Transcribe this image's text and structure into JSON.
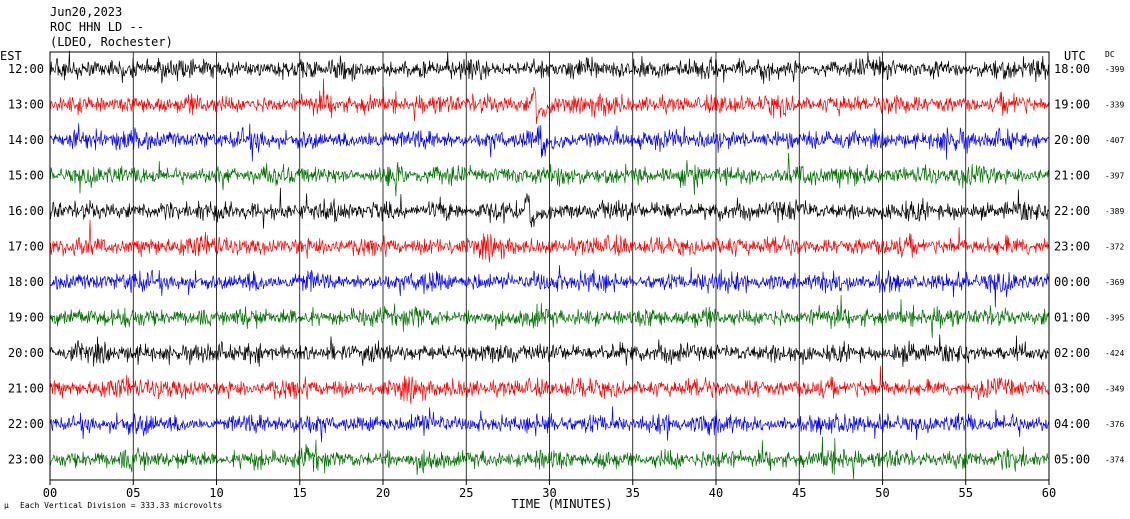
{
  "header": {
    "date": "Jun20,2023",
    "station": "ROC HHN LD --",
    "network": "(LDEO, Rochester)"
  },
  "chart_data": {
    "type": "line",
    "title": "",
    "left_axis_label": "EST",
    "right_axis_label": "UTC",
    "dc_label": "DC",
    "xlabel": "TIME (MINUTES)",
    "xlim": [
      0,
      60
    ],
    "x_ticks": [
      "00",
      "05",
      "10",
      "15",
      "20",
      "25",
      "30",
      "35",
      "40",
      "45",
      "50",
      "55",
      "60"
    ],
    "grid": true,
    "trace_colors": [
      "#000000",
      "#ff0000",
      "#0000ff",
      "#007000"
    ],
    "rows": [
      {
        "est": "12:00",
        "utc": "18:00",
        "dc": "-399",
        "color": "#000000"
      },
      {
        "est": "13:00",
        "utc": "19:00",
        "dc": "-339",
        "color": "#ff0000"
      },
      {
        "est": "14:00",
        "utc": "20:00",
        "dc": "-407",
        "color": "#0000ff"
      },
      {
        "est": "15:00",
        "utc": "21:00",
        "dc": "-397",
        "color": "#007000"
      },
      {
        "est": "16:00",
        "utc": "22:00",
        "dc": "-389",
        "color": "#000000"
      },
      {
        "est": "17:00",
        "utc": "23:00",
        "dc": "-372",
        "color": "#ff0000"
      },
      {
        "est": "18:00",
        "utc": "00:00",
        "dc": "-369",
        "color": "#0000ff"
      },
      {
        "est": "19:00",
        "utc": "01:00",
        "dc": "-395",
        "color": "#007000"
      },
      {
        "est": "20:00",
        "utc": "02:00",
        "dc": "-424",
        "color": "#000000"
      },
      {
        "est": "21:00",
        "utc": "03:00",
        "dc": "-349",
        "color": "#ff0000"
      },
      {
        "est": "22:00",
        "utc": "04:00",
        "dc": "-376",
        "color": "#0000ff"
      },
      {
        "est": "23:00",
        "utc": "05:00",
        "dc": "-374",
        "color": "#007000"
      }
    ],
    "events": [
      {
        "row": "13:00",
        "minute": 29.2,
        "label": ""
      },
      {
        "row": "14:00",
        "minute": 29.5,
        "label": ""
      },
      {
        "row": "16:00",
        "minute": 28.8,
        "label": ""
      }
    ],
    "footnote": "Each Vertical Division =  333.33 microvolts"
  }
}
